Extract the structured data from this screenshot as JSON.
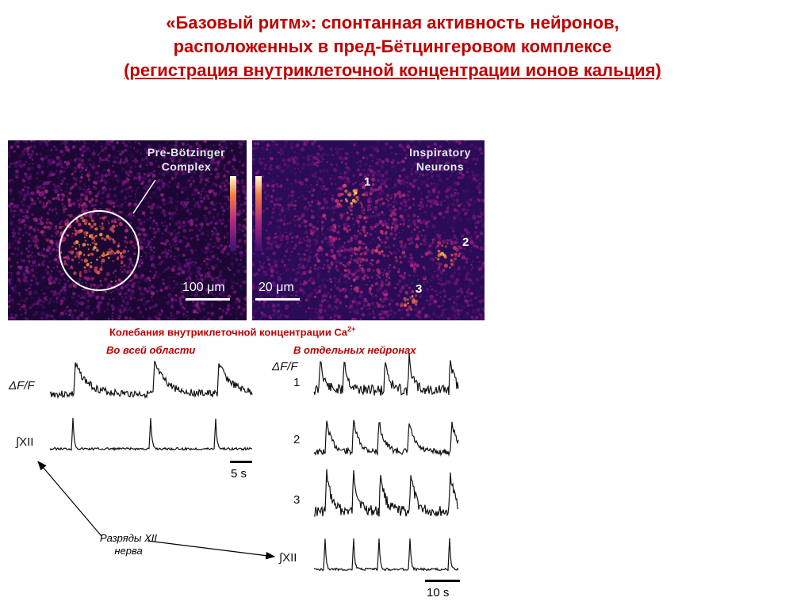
{
  "title": {
    "line1": "«Базовый ритм»: спонтанная активность нейронов,",
    "line2": "расположенных  в пред-Бётцингеровом комплексе",
    "line3": "(регистрация внутриклеточной концентрации ионов кальция)"
  },
  "left_image": {
    "label_line1": "Pre-Bötzinger",
    "label_line2": "Complex",
    "scale": "100 μm"
  },
  "right_image": {
    "label_line1": "Inspiratory",
    "label_line2": "Neurons",
    "scale": "20 μm",
    "neurons": [
      "1",
      "2",
      "3"
    ]
  },
  "captions": {
    "main": "Колебания внутриклеточной концентрации Ca",
    "main_sup": "2+",
    "whole_region": "Во всей области",
    "individual": "В отдельных нейронах"
  },
  "left_traces": {
    "dff_label": "ΔF/F",
    "xii_label": "∫XII",
    "scale": "5 s"
  },
  "right_traces": {
    "dff_label": "ΔF/F",
    "numbers": [
      "1",
      "2",
      "3"
    ],
    "xii_label": "∫XII",
    "scale": "10 s"
  },
  "callout": {
    "line1": "Разряды  XII",
    "line2": "нерва"
  },
  "colors": {
    "title": "#c00000",
    "image_bg": "#2a0a4a",
    "hot": "#ffd060"
  }
}
